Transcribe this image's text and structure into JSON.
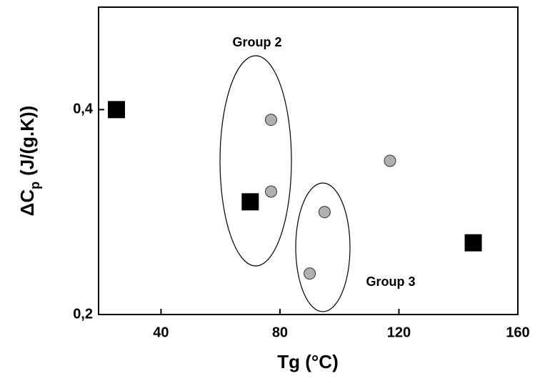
{
  "chart_data": {
    "type": "scatter",
    "x_label": "Tg (°C)",
    "y_label": [
      "ΔC",
      "p",
      "(J/(g.K))"
    ],
    "annotations": [
      "Group 2",
      "Group 3"
    ],
    "xlim": [
      19,
      160
    ],
    "xticks": [
      40,
      80,
      120,
      160
    ],
    "ylim": [
      0.2,
      0.5
    ],
    "yticks": [
      {
        "value": 0.2,
        "label": "0,2"
      },
      {
        "value": 0.4,
        "label": "0,4"
      }
    ],
    "series": [
      {
        "marker": "square",
        "color": "#000000",
        "x": [
          25,
          70,
          145
        ],
        "values": [
          0.4,
          0.31,
          0.27
        ]
      },
      {
        "marker": "circle",
        "color": "#b0b0b0",
        "x": [
          77,
          77,
          95,
          90,
          117
        ],
        "values": [
          0.39,
          0.32,
          0.3,
          0.24,
          0.35
        ]
      }
    ]
  }
}
